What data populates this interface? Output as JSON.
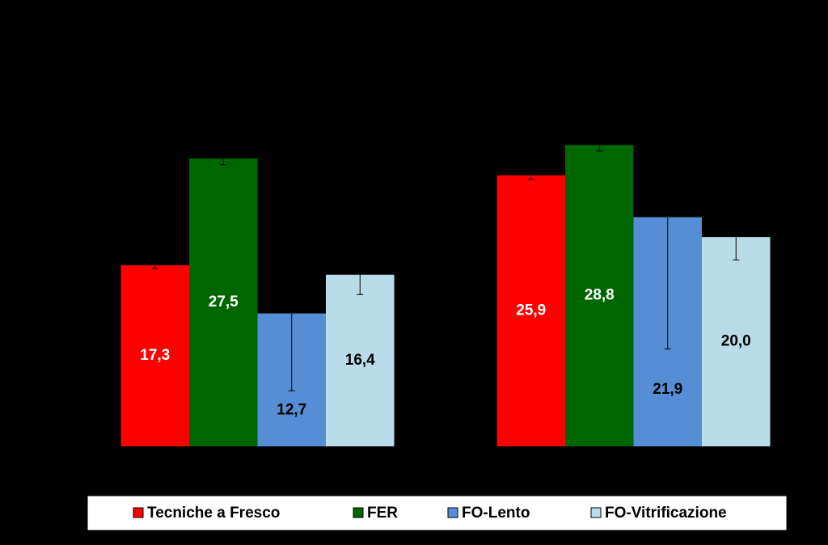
{
  "chart_data": {
    "type": "bar",
    "categories": [
      null,
      null
    ],
    "series": [
      {
        "name": "Tecniche a Fresco",
        "color": "#ff0000",
        "values": [
          17.3,
          25.9
        ],
        "value_labels": [
          "17,3",
          "25,9"
        ],
        "errors": [
          0.3,
          0.4
        ]
      },
      {
        "name": "FER",
        "color": "#006600",
        "values": [
          27.5,
          28.8
        ],
        "value_labels": [
          "27,5",
          "28,8"
        ],
        "errors": [
          0.6,
          0.6
        ]
      },
      {
        "name": "FO-Lento",
        "color": "#558ed5",
        "values": [
          12.7,
          21.9
        ],
        "value_labels": [
          "12,7",
          "21,9"
        ],
        "errors": [
          7.4,
          12.6
        ]
      },
      {
        "name": "FO-Vitrificazione",
        "color": "#b9dde8",
        "values": [
          16.4,
          20.0
        ],
        "value_labels": [
          "16,4",
          "20,0"
        ],
        "errors": [
          1.9,
          2.2
        ]
      }
    ],
    "ylim": [
      0,
      35
    ]
  }
}
